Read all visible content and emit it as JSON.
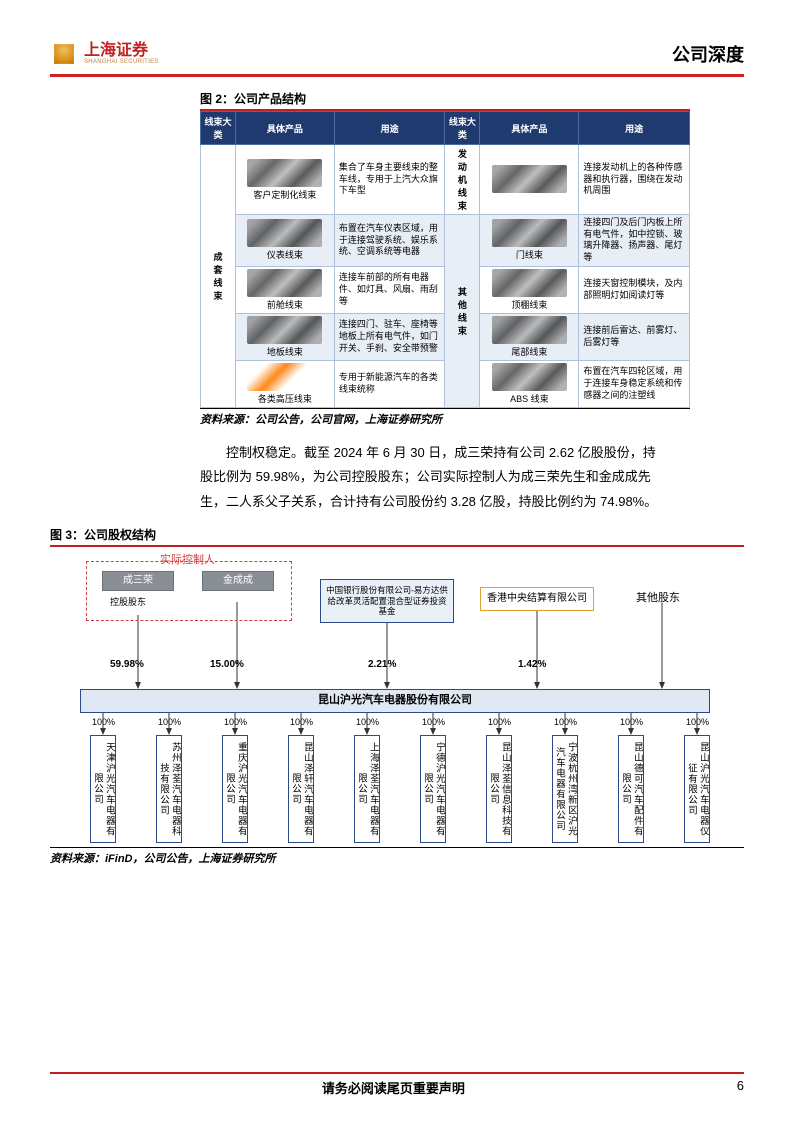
{
  "header": {
    "logo_cn": "上海证券",
    "logo_en": "SHANGHAI SECURITIES",
    "title_right": "公司深度"
  },
  "fig2": {
    "title": "图 2：公司产品结构",
    "headers": [
      "线束大类",
      "具体产品",
      "用途",
      "线束大类",
      "具体产品",
      "用途"
    ],
    "cat_left": "成套线束",
    "cat_r1": "发动机线束",
    "cat_r2": "其他线束",
    "rows": [
      {
        "limg": "客户定制化线束",
        "luse": "集合了车身主要线束的整车线，专用于上汽大众旗下车型",
        "rimg": "",
        "ruse": "连接发动机上的各种传感器和执行器，围绕在发动机周围"
      },
      {
        "limg": "仪表线束",
        "luse": "布置在汽车仪表区域，用于连接驾驶系统、娱乐系统、空调系统等电器",
        "rimg": "门线束",
        "ruse": "连接四门及后门内板上所有电气件，如中控锁、玻璃升降器、扬声器、尾灯等"
      },
      {
        "limg": "前舱线束",
        "luse": "连接车前部的所有电器件、如灯具、风扇、雨刮等",
        "rimg": "顶棚线束",
        "ruse": "连接天窗控制模块，及内部照明灯如阅读灯等"
      },
      {
        "limg": "地板线束",
        "luse": "连接四门、驻车、座椅等地板上所有电气件，如门开关、手刹、安全带预警",
        "rimg": "尾部线束",
        "ruse": "连接前后雷达、前雾灯、后雾灯等"
      },
      {
        "limg": "各类高压线束",
        "luse": "专用于新能源汽车的各类线束统称",
        "rimg": "ABS 线束",
        "ruse": "布置在汽车四轮区域，用于连接车身稳定系统和传感器之间的注塑线"
      }
    ],
    "source": "资料来源：公司公告，公司官网，上海证券研究所"
  },
  "body": "控制权稳定。截至 2024 年 6 月 30 日，成三荣持有公司 2.62 亿股股份，持股比例为 59.98%，为公司控股股东；公司实际控制人为成三荣先生和金成成先生，二人系父子关系，合计持有公司股份约 3.28 亿股，持股比例约为 74.98%。",
  "fig3": {
    "title": "图 3：公司股权结构",
    "controller": "实际控制人",
    "p1": "成三荣",
    "p1s": "控股股东",
    "p2": "金成成",
    "b1": "中国银行股份有限公司-易方达供给改革灵活配置混合型证券投资基金",
    "b2": "香港中央结算有限公司",
    "other": "其他股东",
    "pct": [
      "59.98%",
      "15.00%",
      "2.21%",
      "1.42%"
    ],
    "main": "昆山沪光汽车电器股份有限公司",
    "hundred": "100%",
    "subs": [
      "天津沪光汽车电器有限公司",
      "苏州泽荃汽车电器科技有限公司",
      "重庆沪光汽车电器有限公司",
      "昆山泽轩汽车电器有限公司",
      "上海泽荃汽车电器有限公司",
      "宁德沪光汽车电器有限公司",
      "昆山泽荃信息科技有限公司",
      "宁波杭州湾新区沪光汽车电器有限公司",
      "昆山德可汽车配件有限公司",
      "昆山沪光汽车电器仪征有限公司"
    ],
    "source": "资料来源：iFinD，公司公告，上海证券研究所"
  },
  "footer": {
    "note": "请务必阅读尾页重要声明",
    "page": "6"
  },
  "colors": {
    "red": "#c02020",
    "navy": "#1f3a6e",
    "boxfill": "#eaf0f8"
  }
}
